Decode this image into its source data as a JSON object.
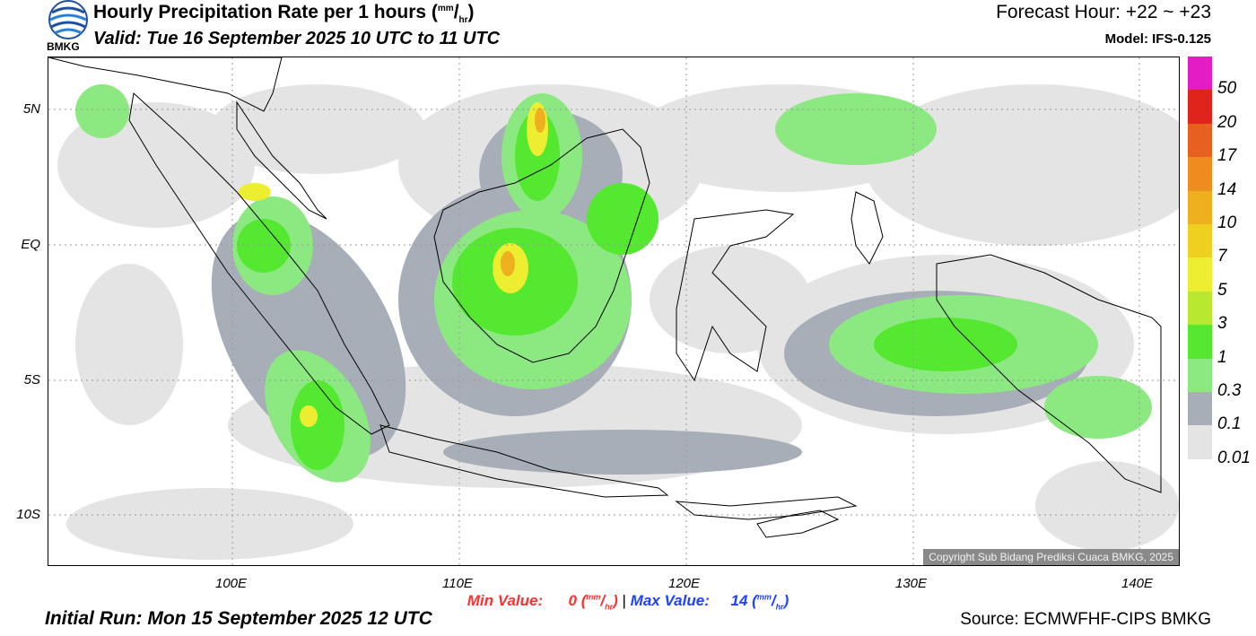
{
  "header": {
    "logo_text": "BMKG",
    "title_main": "Hourly Precipitation Rate per 1 hours (",
    "unit_num": "mm",
    "unit_sep": "/",
    "unit_den": "hr",
    "title_close": ")",
    "valid": "Valid: Tue 16 September 2025 10 UTC to 11 UTC",
    "forecast_hour": "Forecast Hour: +22 ~ +23",
    "model": "Model: IFS-0.125"
  },
  "map": {
    "lat_labels": [
      "5N",
      "EQ",
      "5S",
      "10S"
    ],
    "lon_labels": [
      "100E",
      "110E",
      "120E",
      "130E",
      "140E"
    ],
    "copyright": "Copyright Sub Bidang Prediksi Cuaca BMKG, 2025"
  },
  "colorbar": {
    "labels": [
      "50",
      "20",
      "17",
      "14",
      "10",
      "7",
      "5",
      "3",
      "1",
      "0.3",
      "0.1",
      "0.01"
    ],
    "colors": [
      "#e31cc6",
      "#e0241c",
      "#e86020",
      "#ef8c20",
      "#efb020",
      "#efd020",
      "#eeee30",
      "#b8e830",
      "#54e830",
      "#8ce880",
      "#a8aeb8",
      "#e4e4e4"
    ]
  },
  "stats": {
    "min_label": "Min Value:",
    "min_value": "0",
    "sep": "|",
    "max_label": "Max Value:",
    "max_value": "14",
    "unit_num": "mm",
    "unit_den": "hr"
  },
  "footer": {
    "initial_run": "Initial Run: Mon 15 September 2025 12 UTC",
    "source": "Source: ECMWFHF-CIPS BMKG"
  }
}
